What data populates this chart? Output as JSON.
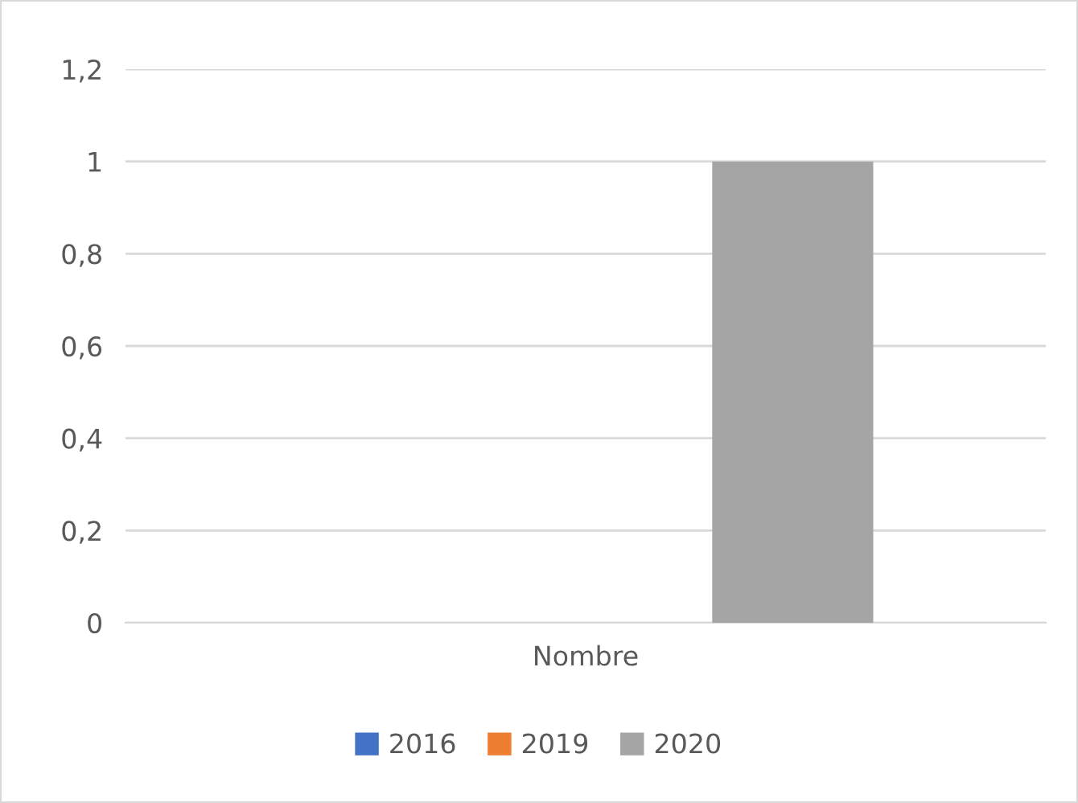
{
  "chart_data": {
    "type": "bar",
    "categories": [
      "Nombre"
    ],
    "series": [
      {
        "name": "2016",
        "color": "#4472c4",
        "values": [
          0
        ]
      },
      {
        "name": "2019",
        "color": "#ed7d31",
        "values": [
          0
        ]
      },
      {
        "name": "2020",
        "color": "#a5a5a5",
        "values": [
          1
        ]
      }
    ],
    "ylim": [
      0,
      1.2
    ],
    "yticks": [
      0,
      {
        "value": 0.2,
        "label": "0,2"
      },
      {
        "value": 0.4,
        "label": "0,4"
      },
      {
        "value": 0.6,
        "label": "0,6"
      },
      {
        "value": 0.8,
        "label": "0,8"
      },
      1,
      {
        "value": 1.2,
        "label": "1,2"
      }
    ],
    "grid": "y",
    "legend": "bottom"
  }
}
